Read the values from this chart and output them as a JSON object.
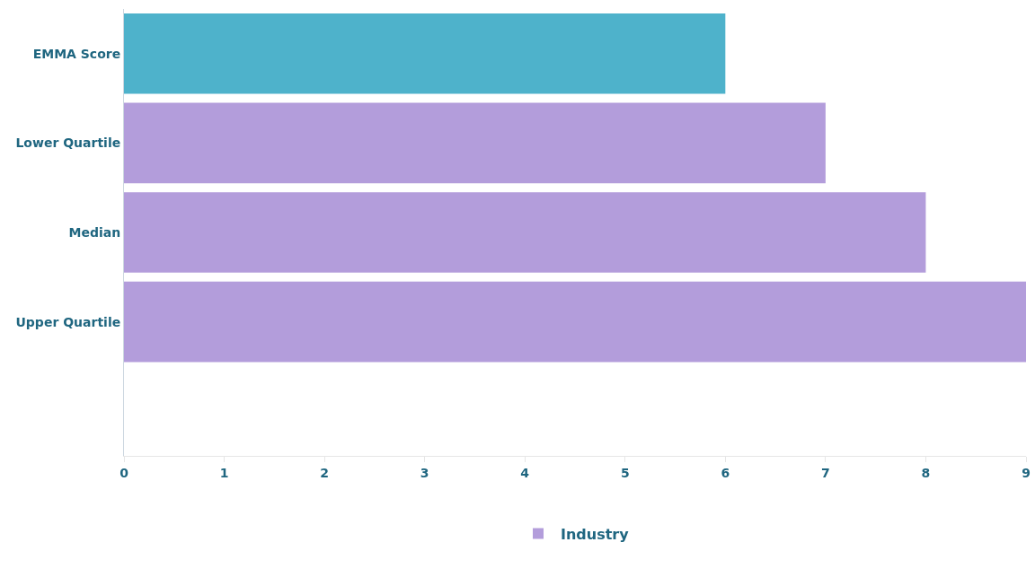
{
  "chart_data": {
    "type": "bar",
    "orientation": "horizontal",
    "stacked": true,
    "categories": [
      "EMMA Score",
      "Lower Quartile",
      "Median",
      "Upper Quartile"
    ],
    "series": [
      {
        "color": "#4eb2cb",
        "values": [
          6,
          null,
          null,
          null
        ]
      },
      {
        "name": "Industry",
        "color": "#b39ddb",
        "values": [
          null,
          7,
          8,
          9
        ]
      }
    ],
    "xlim": [
      0,
      9
    ],
    "xticks": [
      0,
      1,
      2,
      3,
      4,
      5,
      6,
      7,
      8,
      9
    ],
    "grid": false,
    "legend": "bottom"
  }
}
